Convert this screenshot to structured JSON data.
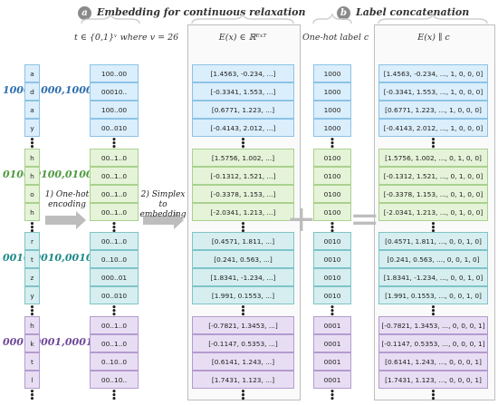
{
  "headers": {
    "a_badge": "a",
    "a_title": "Embedding for continuous relaxation",
    "b_badge": "b",
    "b_title": "Label concatenation"
  },
  "subheaders": {
    "onehot_t": "t ∈ {0,1}ᵛ where v = 26",
    "embedding": "E(x) ∈ ℝᴱˣᵀ",
    "label": "One-hot label c",
    "concat": "E(x) ∥ c"
  },
  "steps": {
    "step1": "1) One-hot encoding",
    "step2": "2) Simplex to embedding"
  },
  "operators": {
    "plus": "+",
    "equals": "="
  },
  "colors": {
    "PT": "#2e6fae",
    "CT1": "#4f9a3f",
    "CT2": "#1f8a8a",
    "CT3": "#6f4a9a"
  },
  "groups": [
    {
      "id": "PT",
      "label": [
        "1000",
        "1000",
        "1000",
        "1000"
      ],
      "sub": "",
      "fill": "#dbeefb",
      "border": "#8cc3e6",
      "chars": [
        "a",
        "d",
        "a",
        "y"
      ],
      "onehot": [
        "100..00",
        "00010..",
        "100..00",
        "00..010"
      ],
      "embed": [
        "[1.4563, -0.234, ...]",
        "[-0.3341, 1.553, ...]",
        "[0.6771, 1.223, ...]",
        "[-0.4143, 2.012, ...]"
      ],
      "concat": [
        "[1.4563, -0.234, ..., 1, 0, 0, 0]",
        "[-0.3341, 1.553, ..., 1, 0, 0, 0]",
        "[0.6771, 1.223, ..., 1, 0, 0, 0]",
        "[-0.4143, 2.012, ..., 1, 0, 0, 0]"
      ]
    },
    {
      "id": "CT1",
      "label": [
        "0100",
        "0100",
        "0100",
        "0100"
      ],
      "sub": "1",
      "fill": "#e5f3d8",
      "border": "#a9d18e",
      "chars": [
        "h",
        "h",
        "o",
        "h"
      ],
      "onehot": [
        "00..1..0",
        "00..1..0",
        "00..1..0",
        "00..1..0"
      ],
      "embed": [
        "[1.5756, 1.002, ...]",
        "[-0.1312, 1.521, ...]",
        "[-0.3378, 1.153, ...]",
        "[-2.0341, 1.213, ...]"
      ],
      "concat": [
        "[1.5756, 1.002, ..., 0, 1, 0, 0]",
        "[-0.1312, 1.521, ..., 0, 1, 0, 0]",
        "[-0.3378, 1.153, ..., 0, 1, 0, 0]",
        "[-2.0341, 1.213, ..., 0, 1, 0, 0]"
      ]
    },
    {
      "id": "CT2",
      "label": [
        "0010",
        "0010",
        "0010",
        "0010"
      ],
      "sub": "2",
      "fill": "#d6eef0",
      "border": "#7fc4c8",
      "chars": [
        "r",
        "t",
        "z",
        "y"
      ],
      "onehot": [
        "00..1..0",
        "0..10..0",
        "000..01",
        "00..010"
      ],
      "embed": [
        "[0.4571, 1.811, ...]",
        "[0.241, 0.563, ...]",
        "[1.8341, -1.234, ...]",
        "[1.991, 0.1553, ...]"
      ],
      "concat": [
        "[0.4571, 1.811, ..., 0, 0, 1, 0]",
        "[0.241, 0.563, ..., 0, 0, 1, 0]",
        "[1.8341, -1.234, ..., 0, 0, 1, 0]",
        "[1.991, 0.1553, ..., 0, 0, 1, 0]"
      ]
    },
    {
      "id": "CT3",
      "label": [
        "0001",
        "0001",
        "0001",
        "0001"
      ],
      "sub": "3",
      "fill": "#e8def3",
      "border": "#b49bd0",
      "chars": [
        "h",
        "k",
        "t",
        "l"
      ],
      "onehot": [
        "00..1..0",
        "00..1..0",
        "0..10..0",
        "00..10.."
      ],
      "embed": [
        "[-0.7821, 1.3453, ...]",
        "[-0.1147, 0.5353, ...]",
        "[0.6141, 1.243, ...]",
        "[1.7431, 1.123, ...]"
      ],
      "concat": [
        "[-0.7821, 1.3453, ..., 0, 0, 0, 1]",
        "[-0.1147, 0.5353, ..., 0, 0, 0, 1]",
        "[0.6141, 1.243, ..., 0, 0, 0, 1]",
        "[1.7431, 1.123, ..., 0, 0, 0, 1]"
      ]
    }
  ]
}
